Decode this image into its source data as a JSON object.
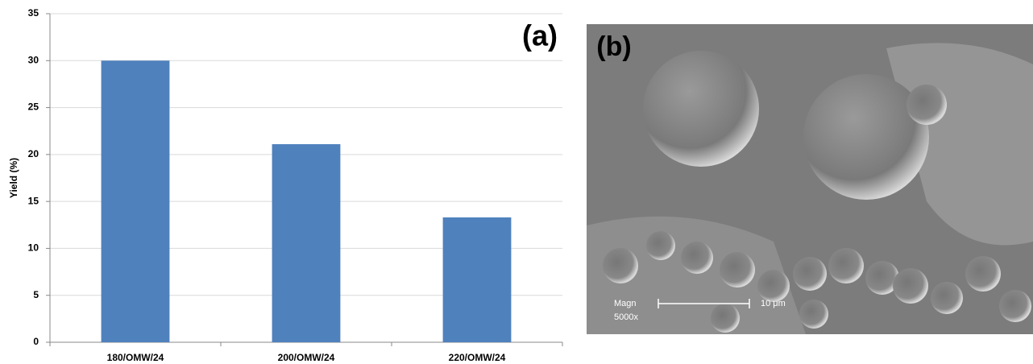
{
  "chart_data": {
    "type": "bar",
    "panel_label": "(a)",
    "y_label": "Yield (%)",
    "categories": [
      "180/OMW/24",
      "200/OMW/24",
      "220/OMW/24"
    ],
    "values": [
      30,
      21.1,
      13.3
    ],
    "color": "#4f81bd",
    "ylim": [
      0,
      35
    ],
    "yticks": [
      0,
      5,
      10,
      15,
      20,
      25,
      30,
      35
    ],
    "grid": true
  },
  "image_panel": {
    "label": "(b)",
    "magnification_label": "Magn",
    "magnification": "5000x",
    "scale": "10 μm"
  }
}
